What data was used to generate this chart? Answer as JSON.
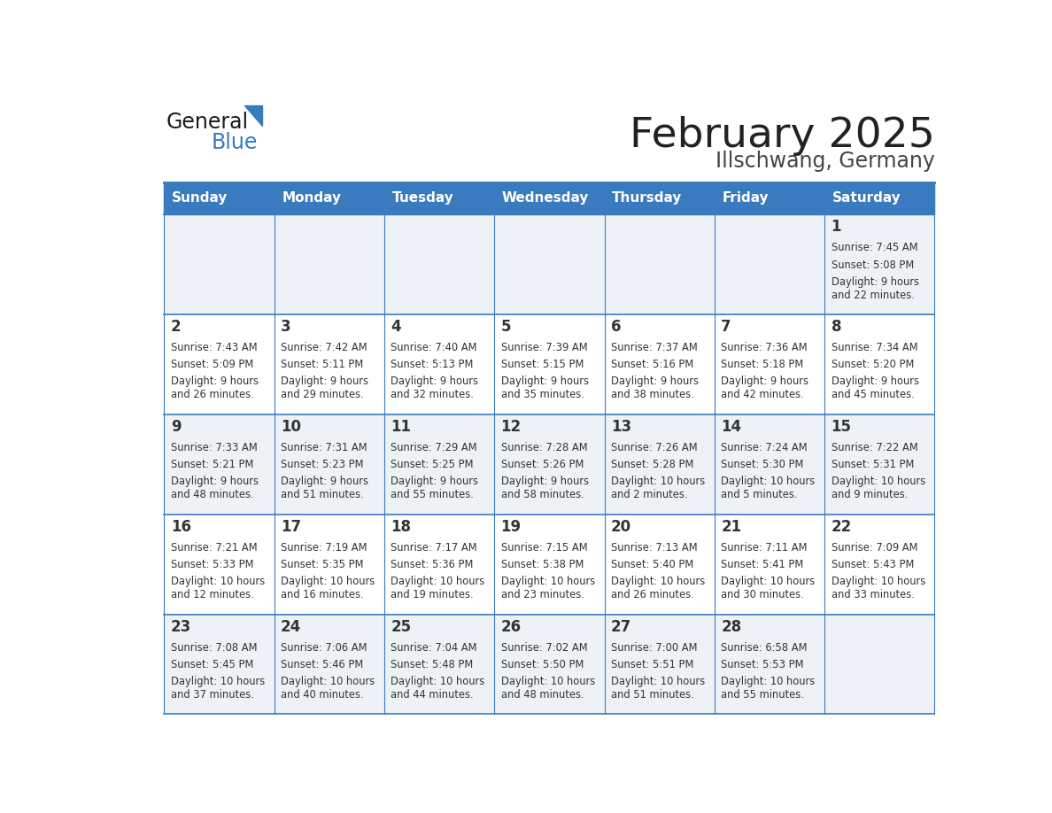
{
  "title": "February 2025",
  "subtitle": "Illschwang, Germany",
  "header_color": "#3a7abf",
  "header_text_color": "#ffffff",
  "cell_bg_light": "#eef2f7",
  "cell_bg_white": "#ffffff",
  "border_color": "#3a7abf",
  "title_color": "#222222",
  "subtitle_color": "#444444",
  "day_number_color": "#333333",
  "cell_text_color": "#333333",
  "days_of_week": [
    "Sunday",
    "Monday",
    "Tuesday",
    "Wednesday",
    "Thursday",
    "Friday",
    "Saturday"
  ],
  "weeks": [
    [
      {
        "day": null,
        "sunrise": null,
        "sunset": null,
        "daylight": null
      },
      {
        "day": null,
        "sunrise": null,
        "sunset": null,
        "daylight": null
      },
      {
        "day": null,
        "sunrise": null,
        "sunset": null,
        "daylight": null
      },
      {
        "day": null,
        "sunrise": null,
        "sunset": null,
        "daylight": null
      },
      {
        "day": null,
        "sunrise": null,
        "sunset": null,
        "daylight": null
      },
      {
        "day": null,
        "sunrise": null,
        "sunset": null,
        "daylight": null
      },
      {
        "day": 1,
        "sunrise": "7:45 AM",
        "sunset": "5:08 PM",
        "daylight": "9 hours\nand 22 minutes."
      }
    ],
    [
      {
        "day": 2,
        "sunrise": "7:43 AM",
        "sunset": "5:09 PM",
        "daylight": "9 hours\nand 26 minutes."
      },
      {
        "day": 3,
        "sunrise": "7:42 AM",
        "sunset": "5:11 PM",
        "daylight": "9 hours\nand 29 minutes."
      },
      {
        "day": 4,
        "sunrise": "7:40 AM",
        "sunset": "5:13 PM",
        "daylight": "9 hours\nand 32 minutes."
      },
      {
        "day": 5,
        "sunrise": "7:39 AM",
        "sunset": "5:15 PM",
        "daylight": "9 hours\nand 35 minutes."
      },
      {
        "day": 6,
        "sunrise": "7:37 AM",
        "sunset": "5:16 PM",
        "daylight": "9 hours\nand 38 minutes."
      },
      {
        "day": 7,
        "sunrise": "7:36 AM",
        "sunset": "5:18 PM",
        "daylight": "9 hours\nand 42 minutes."
      },
      {
        "day": 8,
        "sunrise": "7:34 AM",
        "sunset": "5:20 PM",
        "daylight": "9 hours\nand 45 minutes."
      }
    ],
    [
      {
        "day": 9,
        "sunrise": "7:33 AM",
        "sunset": "5:21 PM",
        "daylight": "9 hours\nand 48 minutes."
      },
      {
        "day": 10,
        "sunrise": "7:31 AM",
        "sunset": "5:23 PM",
        "daylight": "9 hours\nand 51 minutes."
      },
      {
        "day": 11,
        "sunrise": "7:29 AM",
        "sunset": "5:25 PM",
        "daylight": "9 hours\nand 55 minutes."
      },
      {
        "day": 12,
        "sunrise": "7:28 AM",
        "sunset": "5:26 PM",
        "daylight": "9 hours\nand 58 minutes."
      },
      {
        "day": 13,
        "sunrise": "7:26 AM",
        "sunset": "5:28 PM",
        "daylight": "10 hours\nand 2 minutes."
      },
      {
        "day": 14,
        "sunrise": "7:24 AM",
        "sunset": "5:30 PM",
        "daylight": "10 hours\nand 5 minutes."
      },
      {
        "day": 15,
        "sunrise": "7:22 AM",
        "sunset": "5:31 PM",
        "daylight": "10 hours\nand 9 minutes."
      }
    ],
    [
      {
        "day": 16,
        "sunrise": "7:21 AM",
        "sunset": "5:33 PM",
        "daylight": "10 hours\nand 12 minutes."
      },
      {
        "day": 17,
        "sunrise": "7:19 AM",
        "sunset": "5:35 PM",
        "daylight": "10 hours\nand 16 minutes."
      },
      {
        "day": 18,
        "sunrise": "7:17 AM",
        "sunset": "5:36 PM",
        "daylight": "10 hours\nand 19 minutes."
      },
      {
        "day": 19,
        "sunrise": "7:15 AM",
        "sunset": "5:38 PM",
        "daylight": "10 hours\nand 23 minutes."
      },
      {
        "day": 20,
        "sunrise": "7:13 AM",
        "sunset": "5:40 PM",
        "daylight": "10 hours\nand 26 minutes."
      },
      {
        "day": 21,
        "sunrise": "7:11 AM",
        "sunset": "5:41 PM",
        "daylight": "10 hours\nand 30 minutes."
      },
      {
        "day": 22,
        "sunrise": "7:09 AM",
        "sunset": "5:43 PM",
        "daylight": "10 hours\nand 33 minutes."
      }
    ],
    [
      {
        "day": 23,
        "sunrise": "7:08 AM",
        "sunset": "5:45 PM",
        "daylight": "10 hours\nand 37 minutes."
      },
      {
        "day": 24,
        "sunrise": "7:06 AM",
        "sunset": "5:46 PM",
        "daylight": "10 hours\nand 40 minutes."
      },
      {
        "day": 25,
        "sunrise": "7:04 AM",
        "sunset": "5:48 PM",
        "daylight": "10 hours\nand 44 minutes."
      },
      {
        "day": 26,
        "sunrise": "7:02 AM",
        "sunset": "5:50 PM",
        "daylight": "10 hours\nand 48 minutes."
      },
      {
        "day": 27,
        "sunrise": "7:00 AM",
        "sunset": "5:51 PM",
        "daylight": "10 hours\nand 51 minutes."
      },
      {
        "day": 28,
        "sunrise": "6:58 AM",
        "sunset": "5:53 PM",
        "daylight": "10 hours\nand 55 minutes."
      },
      {
        "day": null,
        "sunrise": null,
        "sunset": null,
        "daylight": null
      }
    ]
  ]
}
